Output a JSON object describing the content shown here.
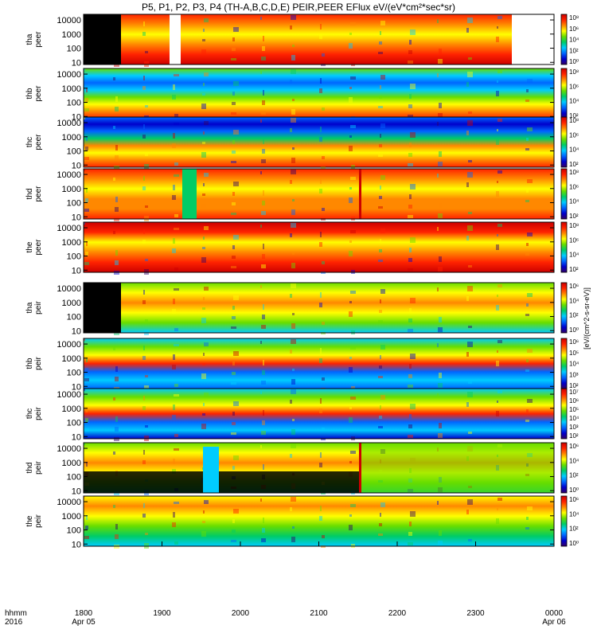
{
  "chart_data": {
    "type": "heatmap",
    "title": "P5, P1, P2, P3, P4 (TH-A,B,C,D,E) PEIR,PEER EFlux eV/(eV*cm²*sec*sr)",
    "time_label_top": "hhmm",
    "time_label_bottom": "2016",
    "x_ticks": [
      "1800",
      "1900",
      "2000",
      "2100",
      "2200",
      "2300",
      "0000"
    ],
    "x_dates": [
      {
        "tick": "1800",
        "date": "Apr 05"
      },
      {
        "tick": "0000",
        "date": "Apr 06"
      }
    ],
    "x_range_hhmm": [
      "1800",
      "0000"
    ],
    "y_scale": "log",
    "y_range_eV": [
      7,
      25000
    ],
    "y_ticks": [
      "10",
      "100",
      "1000",
      "10000"
    ],
    "colorbar_scale": "log",
    "colorbar_unit": "[eV/(cm^2-s-sr-eV)]",
    "colorbar_ticks": {
      "panel_1": [
        "10⁰",
        "10²",
        "10⁴",
        "10⁶",
        "10⁸"
      ],
      "panel_2": [
        "10²",
        "10⁴",
        "10⁶",
        "10⁸"
      ],
      "panel_3": [
        "10²",
        "10⁴",
        "10⁶",
        "10⁸"
      ],
      "panel_4": [
        "10²",
        "10⁴",
        "10⁶",
        "10⁸"
      ],
      "panel_5": [
        "10²",
        "10⁴",
        "10⁶",
        "10⁸"
      ],
      "panel_6": [
        "10⁰",
        "10²",
        "10⁴",
        "10⁶"
      ],
      "panel_7": [
        "10²",
        "10³",
        "10⁴",
        "10⁵",
        "10⁶"
      ],
      "panel_8": [
        "10²",
        "10³",
        "10⁴",
        "10⁵",
        "10⁶",
        "10⁷"
      ],
      "panel_9": [
        "10⁰",
        "10²",
        "10⁴",
        "10⁶"
      ],
      "panel_10": [
        "10⁰",
        "10²",
        "10⁴",
        "10⁶"
      ]
    },
    "panels": [
      {
        "label_line1": "tha",
        "label_line2": "peer"
      },
      {
        "label_line1": "thb",
        "label_line2": "peer"
      },
      {
        "label_line1": "thc",
        "label_line2": "peer"
      },
      {
        "label_line1": "thd",
        "label_line2": "peer"
      },
      {
        "label_line1": "the",
        "label_line2": "peer"
      },
      {
        "label_line1": "tha",
        "label_line2": "peir"
      },
      {
        "label_line1": "thb",
        "label_line2": "peir"
      },
      {
        "label_line1": "thc",
        "label_line2": "peir"
      },
      {
        "label_line1": "thd",
        "label_line2": "peir"
      },
      {
        "label_line1": "the",
        "label_line2": "peir"
      }
    ]
  },
  "colors": {
    "background": "#ffffff",
    "axis": "#000000",
    "colormap": [
      "#330066",
      "#0000cc",
      "#0066ff",
      "#00ccff",
      "#00cc66",
      "#66dd00",
      "#ffff00",
      "#ff8800",
      "#ff2200",
      "#cc0000"
    ]
  }
}
